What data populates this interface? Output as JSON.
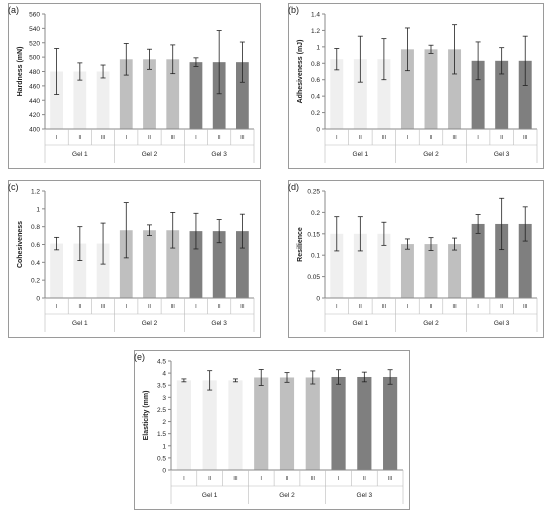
{
  "chart_data": [
    {
      "type": "bar",
      "panel_label": "(a)",
      "ylabel": "Hardness (mN)",
      "ylim": [
        400,
        560
      ],
      "yticks": [
        400,
        420,
        440,
        460,
        480,
        500,
        520,
        540,
        560
      ],
      "categories": [
        "I",
        "II",
        "III",
        "I",
        "II",
        "III",
        "I",
        "II",
        "III"
      ],
      "groups": [
        "Gel 1",
        "Gel 2",
        "Gel 3"
      ],
      "values": [
        480,
        480,
        480,
        497,
        497,
        497,
        493,
        493,
        493
      ],
      "errors": [
        32,
        12,
        9,
        22,
        14,
        20,
        6,
        44,
        28
      ],
      "colors": [
        "#efefef",
        "#efefef",
        "#efefef",
        "#bfbfbf",
        "#bfbfbf",
        "#bfbfbf",
        "#7f7f7f",
        "#7f7f7f",
        "#7f7f7f"
      ],
      "grid": false
    },
    {
      "type": "bar",
      "panel_label": "(b)",
      "ylabel": "Adhesiveness (mJ)",
      "ylim": [
        0,
        1.4
      ],
      "yticks": [
        0,
        0.2,
        0.4,
        0.6,
        0.8,
        1,
        1.2,
        1.4
      ],
      "categories": [
        "I",
        "II",
        "III",
        "I",
        "II",
        "III",
        "I",
        "II",
        "III"
      ],
      "groups": [
        "Gel 1",
        "Gel 2",
        "Gel 3"
      ],
      "values": [
        0.85,
        0.85,
        0.85,
        0.97,
        0.97,
        0.97,
        0.83,
        0.83,
        0.83
      ],
      "errors": [
        0.13,
        0.28,
        0.25,
        0.26,
        0.05,
        0.3,
        0.23,
        0.16,
        0.3
      ],
      "colors": [
        "#efefef",
        "#efefef",
        "#efefef",
        "#bfbfbf",
        "#bfbfbf",
        "#bfbfbf",
        "#7f7f7f",
        "#7f7f7f",
        "#7f7f7f"
      ],
      "grid": false
    },
    {
      "type": "bar",
      "panel_label": "(c)",
      "ylabel": "Cohesiveness",
      "ylim": [
        0,
        1.2
      ],
      "yticks": [
        0,
        0.2,
        0.4,
        0.6,
        0.8,
        1,
        1.2
      ],
      "categories": [
        "I",
        "II",
        "III",
        "I",
        "II",
        "III",
        "I",
        "II",
        "III"
      ],
      "groups": [
        "Gel 1",
        "Gel 2",
        "Gel 3"
      ],
      "values": [
        0.61,
        0.61,
        0.61,
        0.76,
        0.76,
        0.76,
        0.75,
        0.75,
        0.75
      ],
      "errors": [
        0.07,
        0.19,
        0.23,
        0.31,
        0.06,
        0.2,
        0.2,
        0.13,
        0.19
      ],
      "colors": [
        "#efefef",
        "#efefef",
        "#efefef",
        "#bfbfbf",
        "#bfbfbf",
        "#bfbfbf",
        "#7f7f7f",
        "#7f7f7f",
        "#7f7f7f"
      ],
      "grid": false
    },
    {
      "type": "bar",
      "panel_label": "(d)",
      "ylabel": "Resilience",
      "ylim": [
        0,
        0.25
      ],
      "yticks": [
        0,
        0.05,
        0.1,
        0.15,
        0.2,
        0.25
      ],
      "categories": [
        "I",
        "II",
        "III",
        "I",
        "II",
        "III",
        "I",
        "II",
        "III"
      ],
      "groups": [
        "Gel 1",
        "Gel 2",
        "Gel 3"
      ],
      "values": [
        0.15,
        0.15,
        0.15,
        0.126,
        0.126,
        0.126,
        0.173,
        0.173,
        0.173
      ],
      "errors": [
        0.04,
        0.04,
        0.027,
        0.012,
        0.015,
        0.014,
        0.022,
        0.06,
        0.04
      ],
      "colors": [
        "#efefef",
        "#efefef",
        "#efefef",
        "#bfbfbf",
        "#bfbfbf",
        "#bfbfbf",
        "#7f7f7f",
        "#7f7f7f",
        "#7f7f7f"
      ],
      "grid": false
    },
    {
      "type": "bar",
      "panel_label": "(e)",
      "ylabel": "Elasticity (mm)",
      "ylim": [
        0,
        4.5
      ],
      "yticks": [
        0,
        0.5,
        1,
        1.5,
        2,
        2.5,
        3,
        3.5,
        4,
        4.5
      ],
      "categories": [
        "I",
        "II",
        "III",
        "I",
        "II",
        "III",
        "I",
        "II",
        "III"
      ],
      "groups": [
        "Gel 1",
        "Gel 2",
        "Gel 3"
      ],
      "values": [
        3.7,
        3.7,
        3.7,
        3.82,
        3.82,
        3.82,
        3.84,
        3.84,
        3.84
      ],
      "errors": [
        0.06,
        0.4,
        0.06,
        0.33,
        0.2,
        0.27,
        0.3,
        0.2,
        0.3
      ],
      "colors": [
        "#efefef",
        "#efefef",
        "#efefef",
        "#bfbfbf",
        "#bfbfbf",
        "#bfbfbf",
        "#7f7f7f",
        "#7f7f7f",
        "#7f7f7f"
      ],
      "grid": false
    }
  ]
}
